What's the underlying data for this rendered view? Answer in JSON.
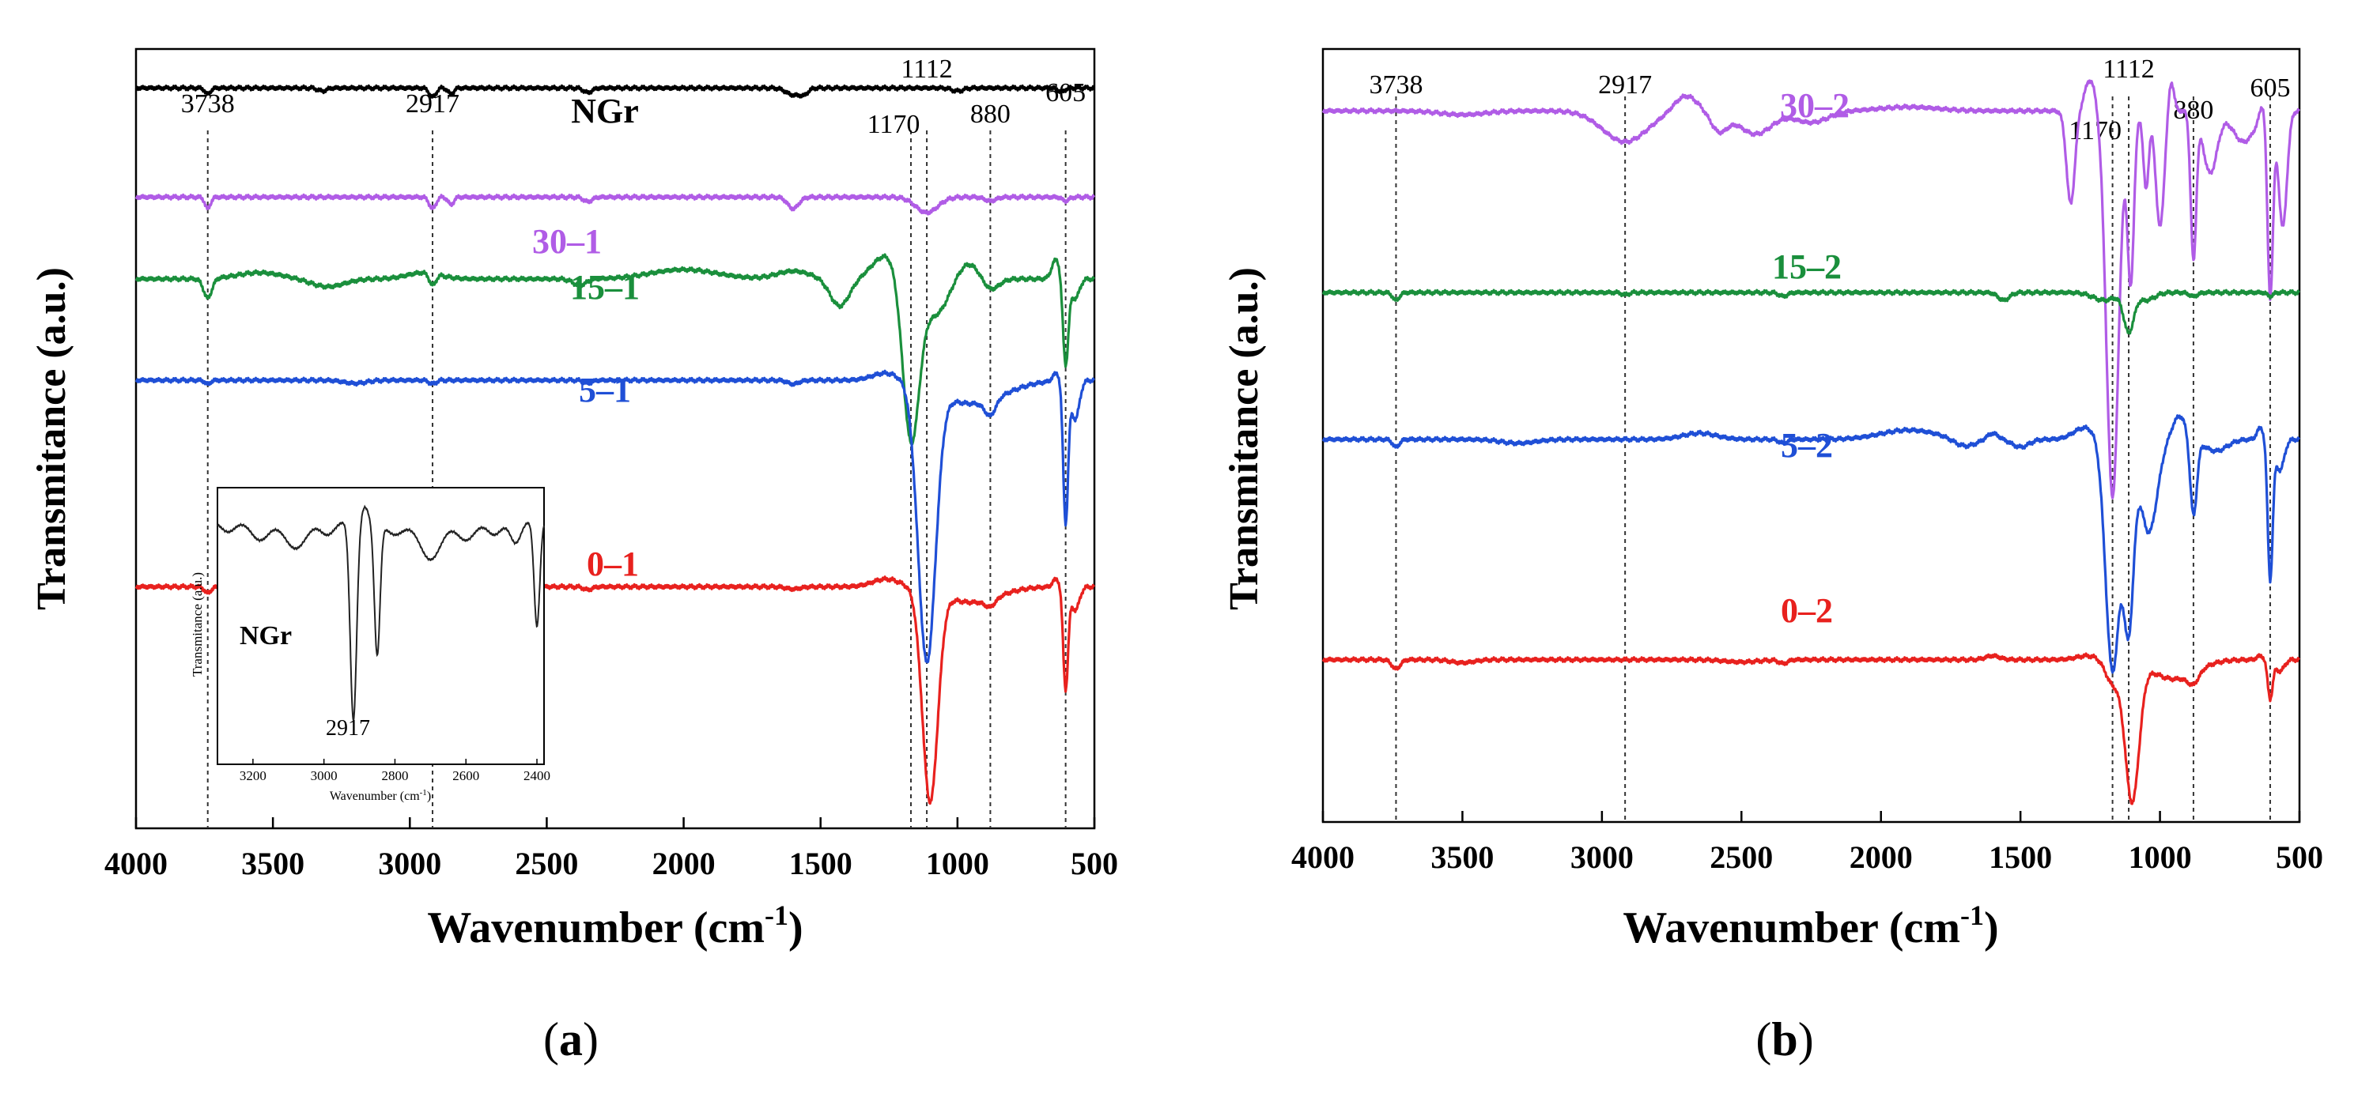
{
  "colors": {
    "NGr": "#000000",
    "30": "#b05ce6",
    "15": "#1a8f3c",
    "5": "#1f4fd6",
    "0": "#e8211e"
  },
  "chart_data": [
    {
      "panel": "(a)",
      "panel_letter": "a",
      "type": "line",
      "title": "",
      "xlabel": "Wavenumber (cm-1)",
      "xlabel_main": "Wavenumber (cm",
      "xlabel_sup": "-1",
      "xlabel_close": ")",
      "ylabel": "Transmitance (a.u.)",
      "xlim": [
        4000,
        500
      ],
      "x_reversed": true,
      "xticks": [
        4000,
        3500,
        3000,
        2500,
        2000,
        1500,
        1000,
        500
      ],
      "ylim": [
        0,
        100
      ],
      "yticks_shown": false,
      "peak_markers": [
        3738,
        2917,
        1170,
        1112,
        880,
        605
      ],
      "series": [
        {
          "name": "NGr",
          "label": "NGr",
          "color_key": "NGr",
          "baseline": 95,
          "features": [
            [
              3738,
              -0.8,
              10
            ],
            [
              3320,
              -0.4,
              15
            ],
            [
              2917,
              -1.2,
              12
            ],
            [
              2850,
              -0.8,
              10
            ],
            [
              2350,
              -0.6,
              15
            ],
            [
              1600,
              -0.9,
              25
            ],
            [
              1560,
              -0.7,
              15
            ],
            [
              1000,
              -0.4,
              20
            ],
            [
              620,
              -0.5,
              12
            ]
          ]
        },
        {
          "name": "30-1",
          "label": "30–1",
          "color_key": "30",
          "baseline": 81,
          "features": [
            [
              3738,
              -1.5,
              10
            ],
            [
              2917,
              -1.5,
              12
            ],
            [
              2850,
              -1.0,
              10
            ],
            [
              2350,
              -0.6,
              15
            ],
            [
              1600,
              -1.5,
              20
            ],
            [
              1112,
              -2.0,
              40
            ],
            [
              880,
              -0.5,
              20
            ],
            [
              605,
              -0.5,
              12
            ]
          ]
        },
        {
          "name": "15-1",
          "label": "15–1",
          "color_key": "15",
          "baseline": 70.5,
          "features": [
            [
              3738,
              -2.5,
              15
            ],
            [
              3550,
              0.8,
              80
            ],
            [
              3300,
              -1.0,
              60
            ],
            [
              2950,
              0.8,
              60
            ],
            [
              2917,
              -1.5,
              12
            ],
            [
              2380,
              -0.8,
              25
            ],
            [
              2000,
              1.2,
              120
            ],
            [
              1600,
              1.0,
              60
            ],
            [
              1430,
              -3.5,
              35
            ],
            [
              1260,
              3.0,
              50
            ],
            [
              1170,
              -21.0,
              30
            ],
            [
              1080,
              -4.5,
              45
            ],
            [
              960,
              2.0,
              40
            ],
            [
              880,
              -1.5,
              30
            ],
            [
              640,
              2.5,
              15
            ],
            [
              605,
              -11.0,
              10
            ],
            [
              570,
              -2.5,
              15
            ]
          ]
        },
        {
          "name": "5-1",
          "label": "5–1",
          "color_key": "5",
          "baseline": 57.5,
          "features": [
            [
              3738,
              -0.5,
              10
            ],
            [
              3200,
              -0.4,
              40
            ],
            [
              2917,
              -0.5,
              12
            ],
            [
              2350,
              -0.4,
              15
            ],
            [
              1600,
              -0.5,
              20
            ],
            [
              1260,
              1.0,
              50
            ],
            [
              1112,
              -35.0,
              32
            ],
            [
              950,
              -3.0,
              120
            ],
            [
              880,
              -2.0,
              20
            ],
            [
              640,
              1.0,
              12
            ],
            [
              605,
              -18.0,
              9
            ],
            [
              570,
              -5.0,
              15
            ]
          ]
        },
        {
          "name": "0-1",
          "label": "0–1",
          "color_key": "0",
          "baseline": 31,
          "features": [
            [
              3738,
              -0.8,
              12
            ],
            [
              2917,
              -0.5,
              12
            ],
            [
              2350,
              -0.4,
              15
            ],
            [
              1600,
              -0.3,
              25
            ],
            [
              1260,
              1.0,
              50
            ],
            [
              1100,
              -27.0,
              28
            ],
            [
              950,
              -2.0,
              100
            ],
            [
              880,
              -1.0,
              20
            ],
            [
              640,
              1.0,
              12
            ],
            [
              605,
              -13.0,
              9
            ],
            [
              570,
              -3.0,
              15
            ]
          ]
        }
      ],
      "series_labels": [
        "NGr",
        "30–1",
        "15–1",
        "5–1",
        "0–1"
      ],
      "inset": {
        "type": "line",
        "label": "NGr",
        "xlabel": "Wavenumber (cm-1)",
        "xlabel_main": "Wavenumber (cm",
        "xlabel_sup": "-1",
        "xlabel_close": ")",
        "ylabel": "Transmitance (a.u.)",
        "xlim": [
          3300,
          2380
        ],
        "x_reversed": true,
        "xticks": [
          3200,
          3000,
          2800,
          2600,
          2400
        ],
        "annotation": "2917",
        "baseline": 88,
        "features": [
          [
            3270,
            -4,
            20
          ],
          [
            3180,
            -7,
            25
          ],
          [
            3080,
            -10,
            30
          ],
          [
            2990,
            -5,
            20
          ],
          [
            2917,
            -72,
            9
          ],
          [
            2885,
            5,
            10
          ],
          [
            2850,
            -48,
            8
          ],
          [
            2800,
            -5,
            25
          ],
          [
            2700,
            -14,
            30
          ],
          [
            2600,
            -7,
            25
          ],
          [
            2520,
            -5,
            20
          ],
          [
            2460,
            -8,
            15
          ],
          [
            2400,
            -38,
            8
          ]
        ]
      }
    },
    {
      "panel": "(b)",
      "panel_letter": "b",
      "type": "line",
      "title": "",
      "xlabel": "Wavenumber (cm-1)",
      "xlabel_main": "Wavenumber (cm",
      "xlabel_sup": "-1",
      "xlabel_close": ")",
      "ylabel": "Transmitance (a.u.)",
      "xlim": [
        4000,
        500
      ],
      "x_reversed": true,
      "xticks": [
        4000,
        3500,
        3000,
        2500,
        2000,
        1500,
        1000,
        500
      ],
      "ylim": [
        0,
        100
      ],
      "yticks_shown": false,
      "peak_markers": [
        3738,
        2917,
        1170,
        1112,
        880,
        605
      ],
      "series": [
        {
          "name": "30-2",
          "label": "30–2",
          "color_key": "30",
          "baseline": 92,
          "features": [
            [
              3500,
              -0.5,
              80
            ],
            [
              2917,
              -4.0,
              80
            ],
            [
              2700,
              2.0,
              40
            ],
            [
              2580,
              -2.5,
              30
            ],
            [
              2450,
              -3.0,
              60
            ],
            [
              2250,
              -1.5,
              60
            ],
            [
              1900,
              0.5,
              100
            ],
            [
              1320,
              -12.0,
              15
            ],
            [
              1250,
              4.0,
              20
            ],
            [
              1170,
              -50.0,
              22
            ],
            [
              1105,
              -22.0,
              12
            ],
            [
              1050,
              -10.0,
              10
            ],
            [
              1000,
              -15.0,
              15
            ],
            [
              960,
              4.0,
              10
            ],
            [
              880,
              -19.0,
              10
            ],
            [
              820,
              -8.0,
              25
            ],
            [
              700,
              -4.0,
              40
            ],
            [
              630,
              2.0,
              12
            ],
            [
              605,
              -24.0,
              10
            ],
            [
              560,
              -15.0,
              15
            ]
          ]
        },
        {
          "name": "15-2",
          "label": "15–2",
          "color_key": "15",
          "baseline": 68.5,
          "features": [
            [
              3738,
              -1.0,
              12
            ],
            [
              2917,
              -0.3,
              12
            ],
            [
              2350,
              -0.5,
              15
            ],
            [
              1560,
              -1.0,
              20
            ],
            [
              1200,
              -1.0,
              40
            ],
            [
              1112,
              -5.0,
              18
            ],
            [
              1050,
              -1.0,
              30
            ],
            [
              880,
              -0.5,
              15
            ],
            [
              605,
              -0.5,
              10
            ]
          ]
        },
        {
          "name": "5-2",
          "label": "5–2",
          "color_key": "5",
          "baseline": 49.5,
          "features": [
            [
              3738,
              -1.0,
              12
            ],
            [
              3300,
              -0.5,
              60
            ],
            [
              2650,
              0.8,
              60
            ],
            [
              2350,
              -0.5,
              15
            ],
            [
              1900,
              1.2,
              100
            ],
            [
              1700,
              -1.0,
              40
            ],
            [
              1600,
              0.8,
              20
            ],
            [
              1500,
              -1.0,
              30
            ],
            [
              1270,
              1.5,
              40
            ],
            [
              1170,
              -30.0,
              25
            ],
            [
              1112,
              -23.0,
              18
            ],
            [
              1040,
              -12.0,
              30
            ],
            [
              930,
              3.0,
              25
            ],
            [
              880,
              -10.0,
              12
            ],
            [
              800,
              -1.5,
              40
            ],
            [
              640,
              1.5,
              12
            ],
            [
              605,
              -18.0,
              9
            ],
            [
              570,
              -4.0,
              15
            ]
          ]
        },
        {
          "name": "0-2",
          "label": "0–2",
          "color_key": "0",
          "baseline": 21,
          "features": [
            [
              3738,
              -1.2,
              15
            ],
            [
              3500,
              -0.4,
              40
            ],
            [
              2500,
              -0.3,
              60
            ],
            [
              2350,
              -0.5,
              15
            ],
            [
              1600,
              0.5,
              25
            ],
            [
              1260,
              0.5,
              40
            ],
            [
              1170,
              -3.0,
              25
            ],
            [
              1100,
              -18.0,
              25
            ],
            [
              950,
              -2.5,
              80
            ],
            [
              880,
              -1.5,
              20
            ],
            [
              640,
              0.5,
              12
            ],
            [
              605,
              -5.0,
              9
            ],
            [
              570,
              -1.5,
              15
            ]
          ]
        }
      ],
      "series_labels": [
        "30–2",
        "15–2",
        "5–2",
        "0–2"
      ]
    }
  ]
}
